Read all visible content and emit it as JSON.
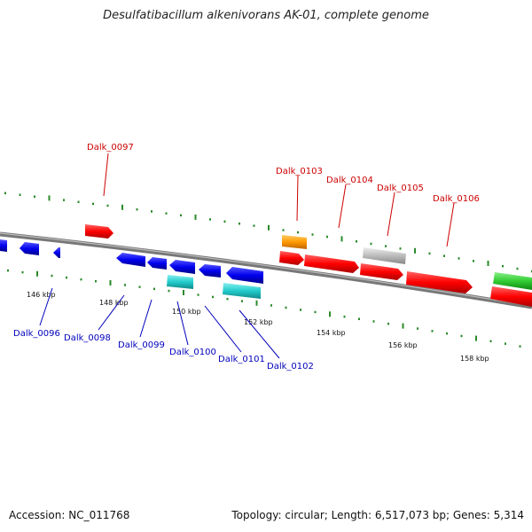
{
  "title": "Desulfatibacillum alkenivorans AK-01, complete genome",
  "footer": {
    "accession": "Accession: NC_011768",
    "stats": "Topology: circular; Length: 6,517,073 bp; Genes: 5,314"
  },
  "colors": {
    "backbone": "#888888",
    "forward_label": "#cc0000",
    "reverse_label": "#0000bb",
    "tick_dots": "#2a8a2a",
    "gene_red": "#ff0000",
    "gene_blue": "#0000ee",
    "gene_cyan": "#22cccc",
    "gene_orange": "#ff9900",
    "gene_gray": "#bbbbbb",
    "gene_green": "#33cc33"
  },
  "scale": {
    "unit": "kbp",
    "ticks": [
      "146 kbp",
      "148 kbp",
      "150 kbp",
      "152 kbp",
      "154 kbp",
      "156 kbp",
      "158 kbp"
    ]
  },
  "genes": {
    "forward_labels": [
      "Dalk_0097",
      "Dalk_0103",
      "Dalk_0104",
      "Dalk_0105",
      "Dalk_0106"
    ],
    "reverse_labels": [
      "Dalk_0096",
      "Dalk_0098",
      "Dalk_0099",
      "Dalk_0100",
      "Dalk_0101",
      "Dalk_0102"
    ]
  }
}
